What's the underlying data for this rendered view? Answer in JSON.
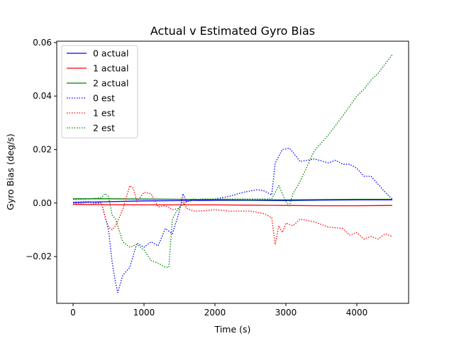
{
  "chart_data": {
    "type": "line",
    "title": "Actual v Estimated Gyro Bias",
    "xlabel": "Time (s)",
    "ylabel": "Gyro Bias (deg/s)",
    "xlim": [
      -230,
      4730
    ],
    "ylim": [
      -0.0375,
      0.0605
    ],
    "xticks": [
      0,
      1000,
      2000,
      3000,
      4000
    ],
    "xtick_labels": [
      "0",
      "1000",
      "2000",
      "3000",
      "4000"
    ],
    "yticks": [
      -0.02,
      0.0,
      0.02,
      0.04,
      0.06
    ],
    "ytick_labels": [
      "−0.02",
      "0.00",
      "0.02",
      "0.04",
      "0.06"
    ],
    "grid": false,
    "legend_position": "top-left",
    "series": [
      {
        "name": "0 actual",
        "color": "#0000ff",
        "style": "solid",
        "x": [
          0,
          500,
          1000,
          1500,
          2000,
          2500,
          3000,
          3500,
          4000,
          4500
        ],
        "y": [
          0.0002,
          0.0005,
          0.0008,
          0.0009,
          0.001,
          0.001,
          0.0009,
          0.0011,
          0.0012,
          0.0012
        ]
      },
      {
        "name": "1 actual",
        "color": "#ff0000",
        "style": "solid",
        "x": [
          0,
          500,
          1000,
          1500,
          2000,
          2500,
          3000,
          3500,
          4000,
          4500
        ],
        "y": [
          -0.0005,
          -0.0006,
          -0.0007,
          -0.0007,
          -0.0007,
          -0.0008,
          -0.0009,
          -0.001,
          -0.001,
          -0.0009
        ]
      },
      {
        "name": "2 actual",
        "color": "#008000",
        "style": "solid",
        "x": [
          0,
          500,
          1000,
          1500,
          2000,
          2500,
          3000,
          3500,
          4000,
          4500
        ],
        "y": [
          0.0016,
          0.0016,
          0.0015,
          0.0014,
          0.0013,
          0.0012,
          0.0012,
          0.0013,
          0.0014,
          0.0014
        ]
      },
      {
        "name": "0 est",
        "color": "#0000ff",
        "style": "dotted",
        "x": [
          0,
          200,
          400,
          500,
          550,
          600,
          630,
          700,
          800,
          900,
          1000,
          1100,
          1200,
          1300,
          1400,
          1500,
          1550,
          1600,
          1700,
          1800,
          2000,
          2200,
          2400,
          2600,
          2700,
          2800,
          2850,
          2950,
          3050,
          3100,
          3200,
          3400,
          3600,
          3700,
          3800,
          3900,
          4000,
          4100,
          4200,
          4300,
          4400,
          4500
        ],
        "y": [
          0.0003,
          0.0005,
          0.0,
          -0.01,
          -0.022,
          -0.03,
          -0.0335,
          -0.027,
          -0.024,
          -0.015,
          -0.0165,
          -0.0145,
          -0.016,
          -0.0095,
          -0.0115,
          -0.003,
          0.0035,
          0.0005,
          0.0015,
          0.001,
          0.0015,
          0.0025,
          0.004,
          0.005,
          0.0045,
          0.003,
          0.015,
          0.02,
          0.0205,
          0.019,
          0.0155,
          0.0165,
          0.015,
          0.016,
          0.0145,
          0.0145,
          0.013,
          0.01,
          0.01,
          0.007,
          0.004,
          0.0015
        ]
      },
      {
        "name": "1 est",
        "color": "#ff0000",
        "style": "dotted",
        "x": [
          0,
          200,
          400,
          450,
          500,
          550,
          600,
          700,
          800,
          850,
          900,
          1000,
          1100,
          1200,
          1300,
          1400,
          1500,
          1550,
          1600,
          1700,
          1800,
          2000,
          2200,
          2500,
          2700,
          2800,
          2850,
          2900,
          2950,
          3000,
          3100,
          3200,
          3400,
          3600,
          3800,
          3900,
          4000,
          4100,
          4200,
          4300,
          4400,
          4500
        ],
        "y": [
          0.0,
          -0.0005,
          0.0,
          -0.005,
          -0.009,
          -0.01,
          -0.0085,
          -0.0025,
          0.0065,
          0.0055,
          0.0005,
          0.004,
          0.0035,
          -0.0015,
          -0.001,
          -0.0025,
          -0.002,
          0.001,
          -0.002,
          -0.003,
          -0.003,
          -0.0025,
          -0.003,
          -0.003,
          -0.004,
          -0.0055,
          -0.0155,
          -0.0085,
          -0.011,
          -0.0075,
          -0.0085,
          -0.006,
          -0.007,
          -0.009,
          -0.0095,
          -0.012,
          -0.011,
          -0.0135,
          -0.0125,
          -0.0135,
          -0.0115,
          -0.0125
        ]
      },
      {
        "name": "2 est",
        "color": "#008000",
        "style": "dotted",
        "x": [
          0,
          200,
          400,
          450,
          500,
          550,
          600,
          700,
          800,
          900,
          1000,
          1100,
          1200,
          1300,
          1350,
          1400,
          1450,
          1500,
          1600,
          1800,
          2000,
          2200,
          2400,
          2600,
          2800,
          2900,
          3000,
          3050,
          3100,
          3200,
          3400,
          3600,
          3800,
          4000,
          4100,
          4200,
          4300,
          4400,
          4500
        ],
        "y": [
          0.0013,
          0.0015,
          0.002,
          0.0035,
          0.0025,
          -0.0045,
          -0.006,
          -0.0145,
          -0.0165,
          -0.0155,
          -0.0175,
          -0.0215,
          -0.0225,
          -0.024,
          -0.024,
          -0.006,
          -0.0035,
          -0.0015,
          0.0005,
          0.0015,
          0.0015,
          0.0015,
          0.0015,
          0.0015,
          0.0015,
          0.0065,
          0.0005,
          -0.001,
          0.0035,
          0.008,
          0.0195,
          0.0255,
          0.0325,
          0.04,
          0.0425,
          0.046,
          0.0485,
          0.052,
          0.0555
        ]
      }
    ]
  }
}
